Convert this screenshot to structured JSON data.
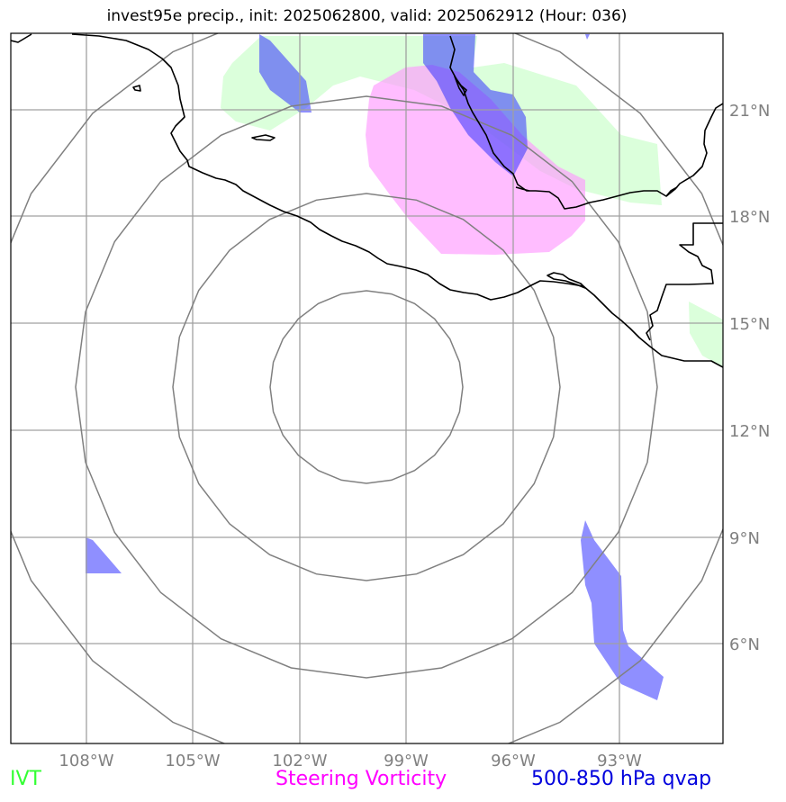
{
  "title": "invest95e precip., init: 2025062800, valid: 2025062912 (Hour: 036)",
  "map": {
    "lon_ticks": [
      "108°W",
      "105°W",
      "102°W",
      "99°W",
      "96°W",
      "93°W"
    ],
    "lat_ticks": [
      "21°N",
      "18°N",
      "15°N",
      "12°N",
      "9°N",
      "6°N"
    ],
    "center_label": "",
    "colors": {
      "ivt": "#ccffcc",
      "vorticity": "#ff99ff",
      "qvap": "#3333ff",
      "grid": "#a0a0a0",
      "rings": "#808080",
      "coast": "#000000"
    }
  },
  "legend": {
    "ivt": {
      "label": "IVT",
      "color": "#33ff33"
    },
    "vorticity": {
      "label": "Steering Vorticity",
      "color": "#ff00ff"
    },
    "qvap": {
      "label": "500-850 hPa qvap",
      "color": "#0000dd"
    }
  }
}
